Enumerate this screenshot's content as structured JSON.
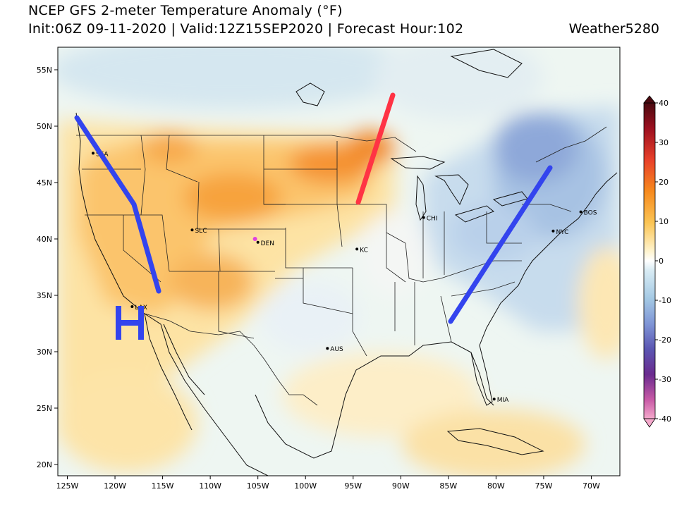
{
  "header": {
    "title": "NCEP GFS 2-meter Temperature Anomaly (°F)",
    "subtitle": "Init:06Z 09-11-2020 | Valid:12Z15SEP2020 | Forecast Hour:102",
    "credit": "Weather5280"
  },
  "map": {
    "lon_range": [
      -126,
      -67
    ],
    "lat_range": [
      19,
      57
    ],
    "lat_ticks": [
      {
        "value": 55,
        "label": "55N"
      },
      {
        "value": 50,
        "label": "50N"
      },
      {
        "value": 45,
        "label": "45N"
      },
      {
        "value": 40,
        "label": "40N"
      },
      {
        "value": 35,
        "label": "35N"
      },
      {
        "value": 30,
        "label": "30N"
      },
      {
        "value": 25,
        "label": "25N"
      },
      {
        "value": 20,
        "label": "20N"
      }
    ],
    "lon_ticks": [
      {
        "value": -125,
        "label": "125W"
      },
      {
        "value": -120,
        "label": "120W"
      },
      {
        "value": -115,
        "label": "115W"
      },
      {
        "value": -110,
        "label": "110W"
      },
      {
        "value": -105,
        "label": "105W"
      },
      {
        "value": -100,
        "label": "100W"
      },
      {
        "value": -95,
        "label": "95W"
      },
      {
        "value": -90,
        "label": "90W"
      },
      {
        "value": -85,
        "label": "85W"
      },
      {
        "value": -80,
        "label": "80W"
      },
      {
        "value": -75,
        "label": "75W"
      },
      {
        "value": -70,
        "label": "70W"
      }
    ],
    "cities": [
      {
        "label": "SEA",
        "lon": -122.3,
        "lat": 47.6,
        "color": "#000000"
      },
      {
        "label": "SLC",
        "lon": -111.9,
        "lat": 40.8,
        "color": "#000000"
      },
      {
        "label": "DEN",
        "lon": -105.0,
        "lat": 39.7,
        "color": "#000000"
      },
      {
        "label": "KC",
        "lon": -94.6,
        "lat": 39.1,
        "color": "#000000"
      },
      {
        "label": "CHI",
        "lon": -87.6,
        "lat": 41.9,
        "color": "#000000"
      },
      {
        "label": "BOS",
        "lon": -71.1,
        "lat": 42.4,
        "color": "#000000"
      },
      {
        "label": "NYC",
        "lon": -74.0,
        "lat": 40.7,
        "color": "#000000"
      },
      {
        "label": "LAX",
        "lon": -118.2,
        "lat": 34.0,
        "color": "#000000"
      },
      {
        "label": "AUS",
        "lon": -97.7,
        "lat": 30.3,
        "color": "#000000"
      },
      {
        "label": "MIA",
        "lon": -80.2,
        "lat": 25.8,
        "color": "#000000"
      },
      {
        "label": "",
        "lon": -105.3,
        "lat": 40.0,
        "color": "#e040e0"
      }
    ],
    "annotations": {
      "high_label": "H",
      "high_color": "#3344ee",
      "ridge_color": "#ff3344",
      "trough_color": "#3344ee"
    }
  },
  "colorbar": {
    "min": -40,
    "max": 40,
    "tick_labels": [
      "40",
      "30",
      "20",
      "10",
      "0",
      "-10",
      "-20",
      "-30",
      "-40"
    ],
    "tick_values": [
      40,
      30,
      20,
      10,
      0,
      -10,
      -20,
      -30,
      -40
    ]
  }
}
